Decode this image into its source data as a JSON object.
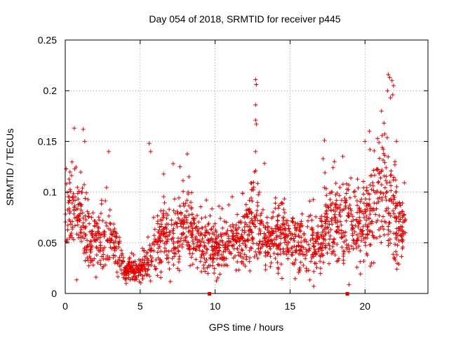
{
  "chart_data": {
    "type": "scatter",
    "title": "Day 054 of 2018, SRMTID for receiver p445",
    "xlabel": "GPS time / hours",
    "ylabel": "SRMTID / TECUs",
    "xlim": [
      0,
      24.2
    ],
    "ylim": [
      0,
      0.25
    ],
    "x_ticks": [
      0,
      5,
      10,
      15,
      20
    ],
    "x_tick_labels": [
      "0",
      "5",
      "10",
      "15",
      "20"
    ],
    "y_ticks": [
      0,
      0.05,
      0.1,
      0.15,
      0.2,
      0.25
    ],
    "y_tick_labels": [
      "0",
      "0.05",
      "0.1",
      "0.15",
      "0.2",
      "0.25"
    ],
    "grid": true,
    "marker": "+",
    "color": "#e00000",
    "x_axis_markers": [
      9.6,
      18.8
    ],
    "series": [
      {
        "name": "SRMTID",
        "profile": [
          {
            "x": 0.0,
            "y": 0.075
          },
          {
            "x": 0.5,
            "y": 0.085
          },
          {
            "x": 1.0,
            "y": 0.07
          },
          {
            "x": 1.5,
            "y": 0.06
          },
          {
            "x": 2.0,
            "y": 0.05
          },
          {
            "x": 3.0,
            "y": 0.052
          },
          {
            "x": 3.5,
            "y": 0.04
          },
          {
            "x": 4.0,
            "y": 0.025
          },
          {
            "x": 5.0,
            "y": 0.022
          },
          {
            "x": 5.5,
            "y": 0.03
          },
          {
            "x": 6.0,
            "y": 0.05
          },
          {
            "x": 7.0,
            "y": 0.055
          },
          {
            "x": 8.0,
            "y": 0.065
          },
          {
            "x": 9.0,
            "y": 0.05
          },
          {
            "x": 10.0,
            "y": 0.045
          },
          {
            "x": 11.0,
            "y": 0.05
          },
          {
            "x": 12.0,
            "y": 0.055
          },
          {
            "x": 12.7,
            "y": 0.065
          },
          {
            "x": 13.5,
            "y": 0.05
          },
          {
            "x": 14.5,
            "y": 0.06
          },
          {
            "x": 15.5,
            "y": 0.05
          },
          {
            "x": 16.5,
            "y": 0.045
          },
          {
            "x": 17.0,
            "y": 0.045
          },
          {
            "x": 17.5,
            "y": 0.07
          },
          {
            "x": 18.5,
            "y": 0.075
          },
          {
            "x": 19.5,
            "y": 0.065
          },
          {
            "x": 20.5,
            "y": 0.075
          },
          {
            "x": 21.0,
            "y": 0.11
          },
          {
            "x": 21.5,
            "y": 0.1
          },
          {
            "x": 22.0,
            "y": 0.075
          },
          {
            "x": 22.7,
            "y": 0.05
          }
        ],
        "spikes": [
          {
            "x": 0.6,
            "y": 0.163
          },
          {
            "x": 1.2,
            "y": 0.162
          },
          {
            "x": 1.3,
            "y": 0.15
          },
          {
            "x": 2.9,
            "y": 0.14
          },
          {
            "x": 5.6,
            "y": 0.148
          },
          {
            "x": 5.7,
            "y": 0.14
          },
          {
            "x": 7.2,
            "y": 0.128
          },
          {
            "x": 8.2,
            "y": 0.1
          },
          {
            "x": 12.7,
            "y": 0.211
          },
          {
            "x": 12.75,
            "y": 0.206
          },
          {
            "x": 12.7,
            "y": 0.186
          },
          {
            "x": 12.7,
            "y": 0.171
          },
          {
            "x": 12.75,
            "y": 0.167
          },
          {
            "x": 12.7,
            "y": 0.14
          },
          {
            "x": 17.3,
            "y": 0.151
          },
          {
            "x": 17.2,
            "y": 0.133
          },
          {
            "x": 20.0,
            "y": 0.15
          },
          {
            "x": 20.3,
            "y": 0.16
          },
          {
            "x": 21.1,
            "y": 0.18
          },
          {
            "x": 21.5,
            "y": 0.2
          },
          {
            "x": 21.55,
            "y": 0.216
          },
          {
            "x": 21.65,
            "y": 0.213
          },
          {
            "x": 21.8,
            "y": 0.21
          },
          {
            "x": 21.9,
            "y": 0.205
          },
          {
            "x": 21.85,
            "y": 0.196
          },
          {
            "x": 21.7,
            "y": 0.193
          },
          {
            "x": 22.1,
            "y": 0.15
          },
          {
            "x": 22.0,
            "y": 0.13
          }
        ]
      }
    ]
  }
}
